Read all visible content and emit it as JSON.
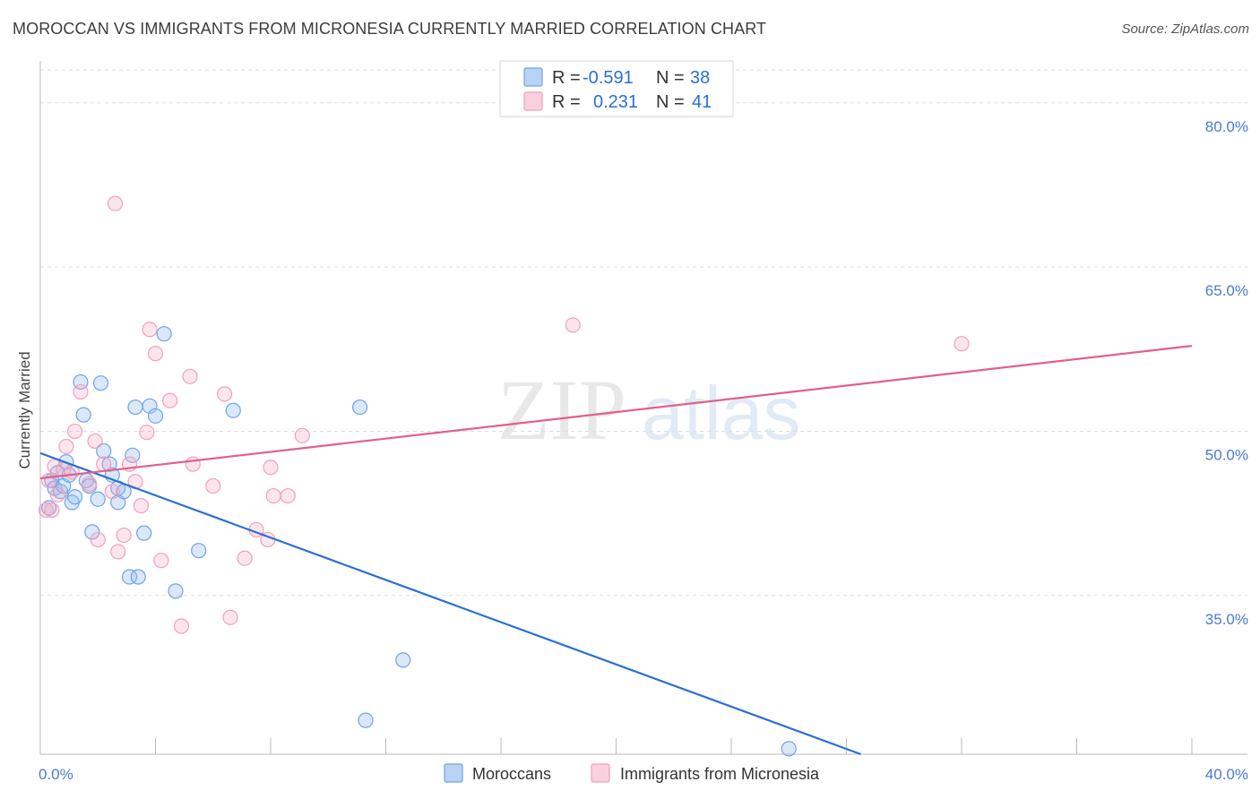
{
  "header": {
    "title": "MOROCCAN VS IMMIGRANTS FROM MICRONESIA CURRENTLY MARRIED CORRELATION CHART",
    "source": "Source: ZipAtlas.com"
  },
  "watermark": {
    "zip": "ZIP",
    "atlas": "atlas"
  },
  "colors": {
    "blue": "#6fa3e8",
    "blue_line": "#2a6fd6",
    "pink": "#f0a0bc",
    "pink_line": "#e0608a",
    "grid": "#dddddd",
    "tick_text": "#4a7bd0"
  },
  "legend": {
    "rows": [
      {
        "r_label": "R = ",
        "r_value": "-0.591",
        "n_label": "N = ",
        "n_value": "38"
      },
      {
        "r_label": "R = ",
        "r_value": "0.231",
        "n_label": "N = ",
        "n_value": "41"
      }
    ]
  },
  "chart_data": {
    "type": "scatter",
    "title": "MOROCCAN VS IMMIGRANTS FROM MICRONESIA CURRENTLY MARRIED CORRELATION CHART",
    "xlabel": "",
    "ylabel": "Currently Married",
    "xlim": [
      0,
      40
    ],
    "ylim": [
      20.5,
      83.5
    ],
    "x_tick_labels": [
      "0.0%",
      "40.0%"
    ],
    "y_ticks": [
      35,
      50,
      65,
      80
    ],
    "y_tick_labels": [
      "35.0%",
      "50.0%",
      "65.0%",
      "80.0%"
    ],
    "grid": true,
    "legend_position": "top-center",
    "series": [
      {
        "name": "Moroccans",
        "r": -0.591,
        "n": 38,
        "trend": {
          "x0": 0,
          "y0": 48.0,
          "x1": 28.5,
          "y1": 20.5
        },
        "points": [
          [
            0.3,
            43.0
          ],
          [
            0.4,
            45.5
          ],
          [
            0.5,
            44.8
          ],
          [
            0.6,
            46.2
          ],
          [
            0.7,
            44.5
          ],
          [
            0.8,
            45.0
          ],
          [
            0.9,
            47.2
          ],
          [
            1.0,
            46.0
          ],
          [
            1.1,
            43.5
          ],
          [
            1.2,
            44.0
          ],
          [
            1.4,
            54.5
          ],
          [
            1.5,
            51.5
          ],
          [
            1.6,
            45.5
          ],
          [
            1.7,
            45.0
          ],
          [
            1.8,
            40.8
          ],
          [
            2.0,
            43.8
          ],
          [
            2.1,
            54.4
          ],
          [
            2.2,
            48.2
          ],
          [
            2.4,
            47.0
          ],
          [
            2.5,
            46.0
          ],
          [
            2.7,
            44.8
          ],
          [
            2.7,
            43.5
          ],
          [
            2.9,
            44.5
          ],
          [
            3.1,
            36.7
          ],
          [
            3.2,
            47.8
          ],
          [
            3.3,
            52.2
          ],
          [
            3.4,
            36.7
          ],
          [
            3.6,
            40.7
          ],
          [
            3.8,
            52.3
          ],
          [
            4.0,
            51.4
          ],
          [
            4.3,
            58.9
          ],
          [
            4.7,
            35.4
          ],
          [
            5.5,
            39.1
          ],
          [
            6.7,
            51.9
          ],
          [
            11.1,
            52.2
          ],
          [
            11.3,
            23.6
          ],
          [
            12.6,
            29.1
          ],
          [
            26.0,
            21.0
          ]
        ]
      },
      {
        "name": "Immigrants from Micronesia",
        "r": 0.231,
        "n": 41,
        "trend": {
          "x0": 0,
          "y0": 45.7,
          "x1": 40,
          "y1": 57.8
        },
        "points": [
          [
            0.2,
            42.8
          ],
          [
            0.3,
            45.5
          ],
          [
            0.5,
            46.8
          ],
          [
            0.6,
            44.2
          ],
          [
            0.8,
            46.5
          ],
          [
            0.9,
            48.6
          ],
          [
            1.1,
            46.3
          ],
          [
            1.2,
            50.0
          ],
          [
            1.4,
            53.6
          ],
          [
            1.7,
            45.2
          ],
          [
            1.9,
            49.1
          ],
          [
            2.0,
            40.1
          ],
          [
            2.2,
            47.0
          ],
          [
            2.5,
            44.5
          ],
          [
            2.6,
            70.8
          ],
          [
            2.7,
            39.0
          ],
          [
            2.9,
            40.5
          ],
          [
            3.1,
            47.0
          ],
          [
            3.3,
            45.4
          ],
          [
            3.5,
            43.2
          ],
          [
            3.7,
            49.9
          ],
          [
            3.8,
            59.3
          ],
          [
            4.0,
            57.1
          ],
          [
            4.2,
            38.2
          ],
          [
            4.5,
            52.8
          ],
          [
            4.9,
            32.2
          ],
          [
            5.2,
            55.0
          ],
          [
            5.3,
            47.0
          ],
          [
            6.0,
            45.0
          ],
          [
            6.4,
            53.4
          ],
          [
            6.6,
            33.0
          ],
          [
            7.1,
            38.4
          ],
          [
            7.5,
            41.0
          ],
          [
            7.9,
            40.1
          ],
          [
            8.0,
            46.7
          ],
          [
            8.1,
            44.1
          ],
          [
            8.6,
            44.1
          ],
          [
            9.1,
            49.6
          ],
          [
            18.5,
            59.7
          ],
          [
            32.0,
            58.0
          ],
          [
            0.4,
            42.8
          ]
        ]
      }
    ]
  }
}
